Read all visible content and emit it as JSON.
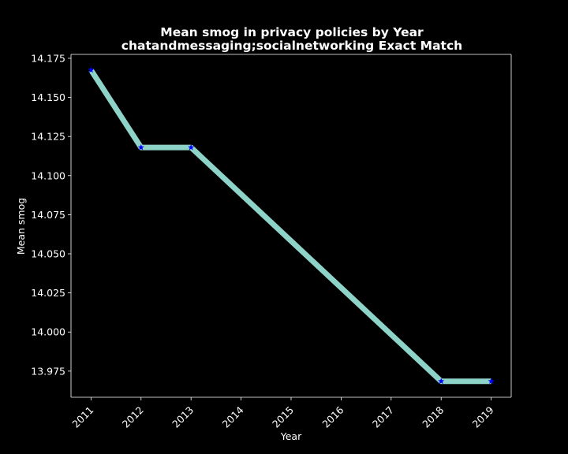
{
  "chart_data": {
    "type": "line",
    "title": "Mean smog in privacy policies by Year",
    "subtitle": "chatandmessaging;socialnetworking Exact Match",
    "xlabel": "Year",
    "ylabel": "Mean smog",
    "x": [
      2011,
      2012,
      2013,
      2018,
      2019
    ],
    "x_ticks": [
      "2011",
      "2012",
      "2013",
      "2014",
      "2015",
      "2016",
      "2017",
      "2018",
      "2019"
    ],
    "y_ticks": [
      "13.975",
      "14.000",
      "14.025",
      "14.050",
      "14.075",
      "14.100",
      "14.125",
      "14.150",
      "14.175"
    ],
    "xlim": [
      2010.6,
      2019.4
    ],
    "ylim": [
      13.9583,
      14.1775
    ],
    "series": [
      {
        "values": [
          14.1675,
          14.118,
          14.118,
          13.9685,
          13.9685
        ],
        "line_color": "#8dd3c7",
        "marker": "star",
        "marker_color": "#0000ff"
      }
    ],
    "grid": false,
    "legend": "none",
    "background": "#000000",
    "axis_color": "#ffffff"
  }
}
